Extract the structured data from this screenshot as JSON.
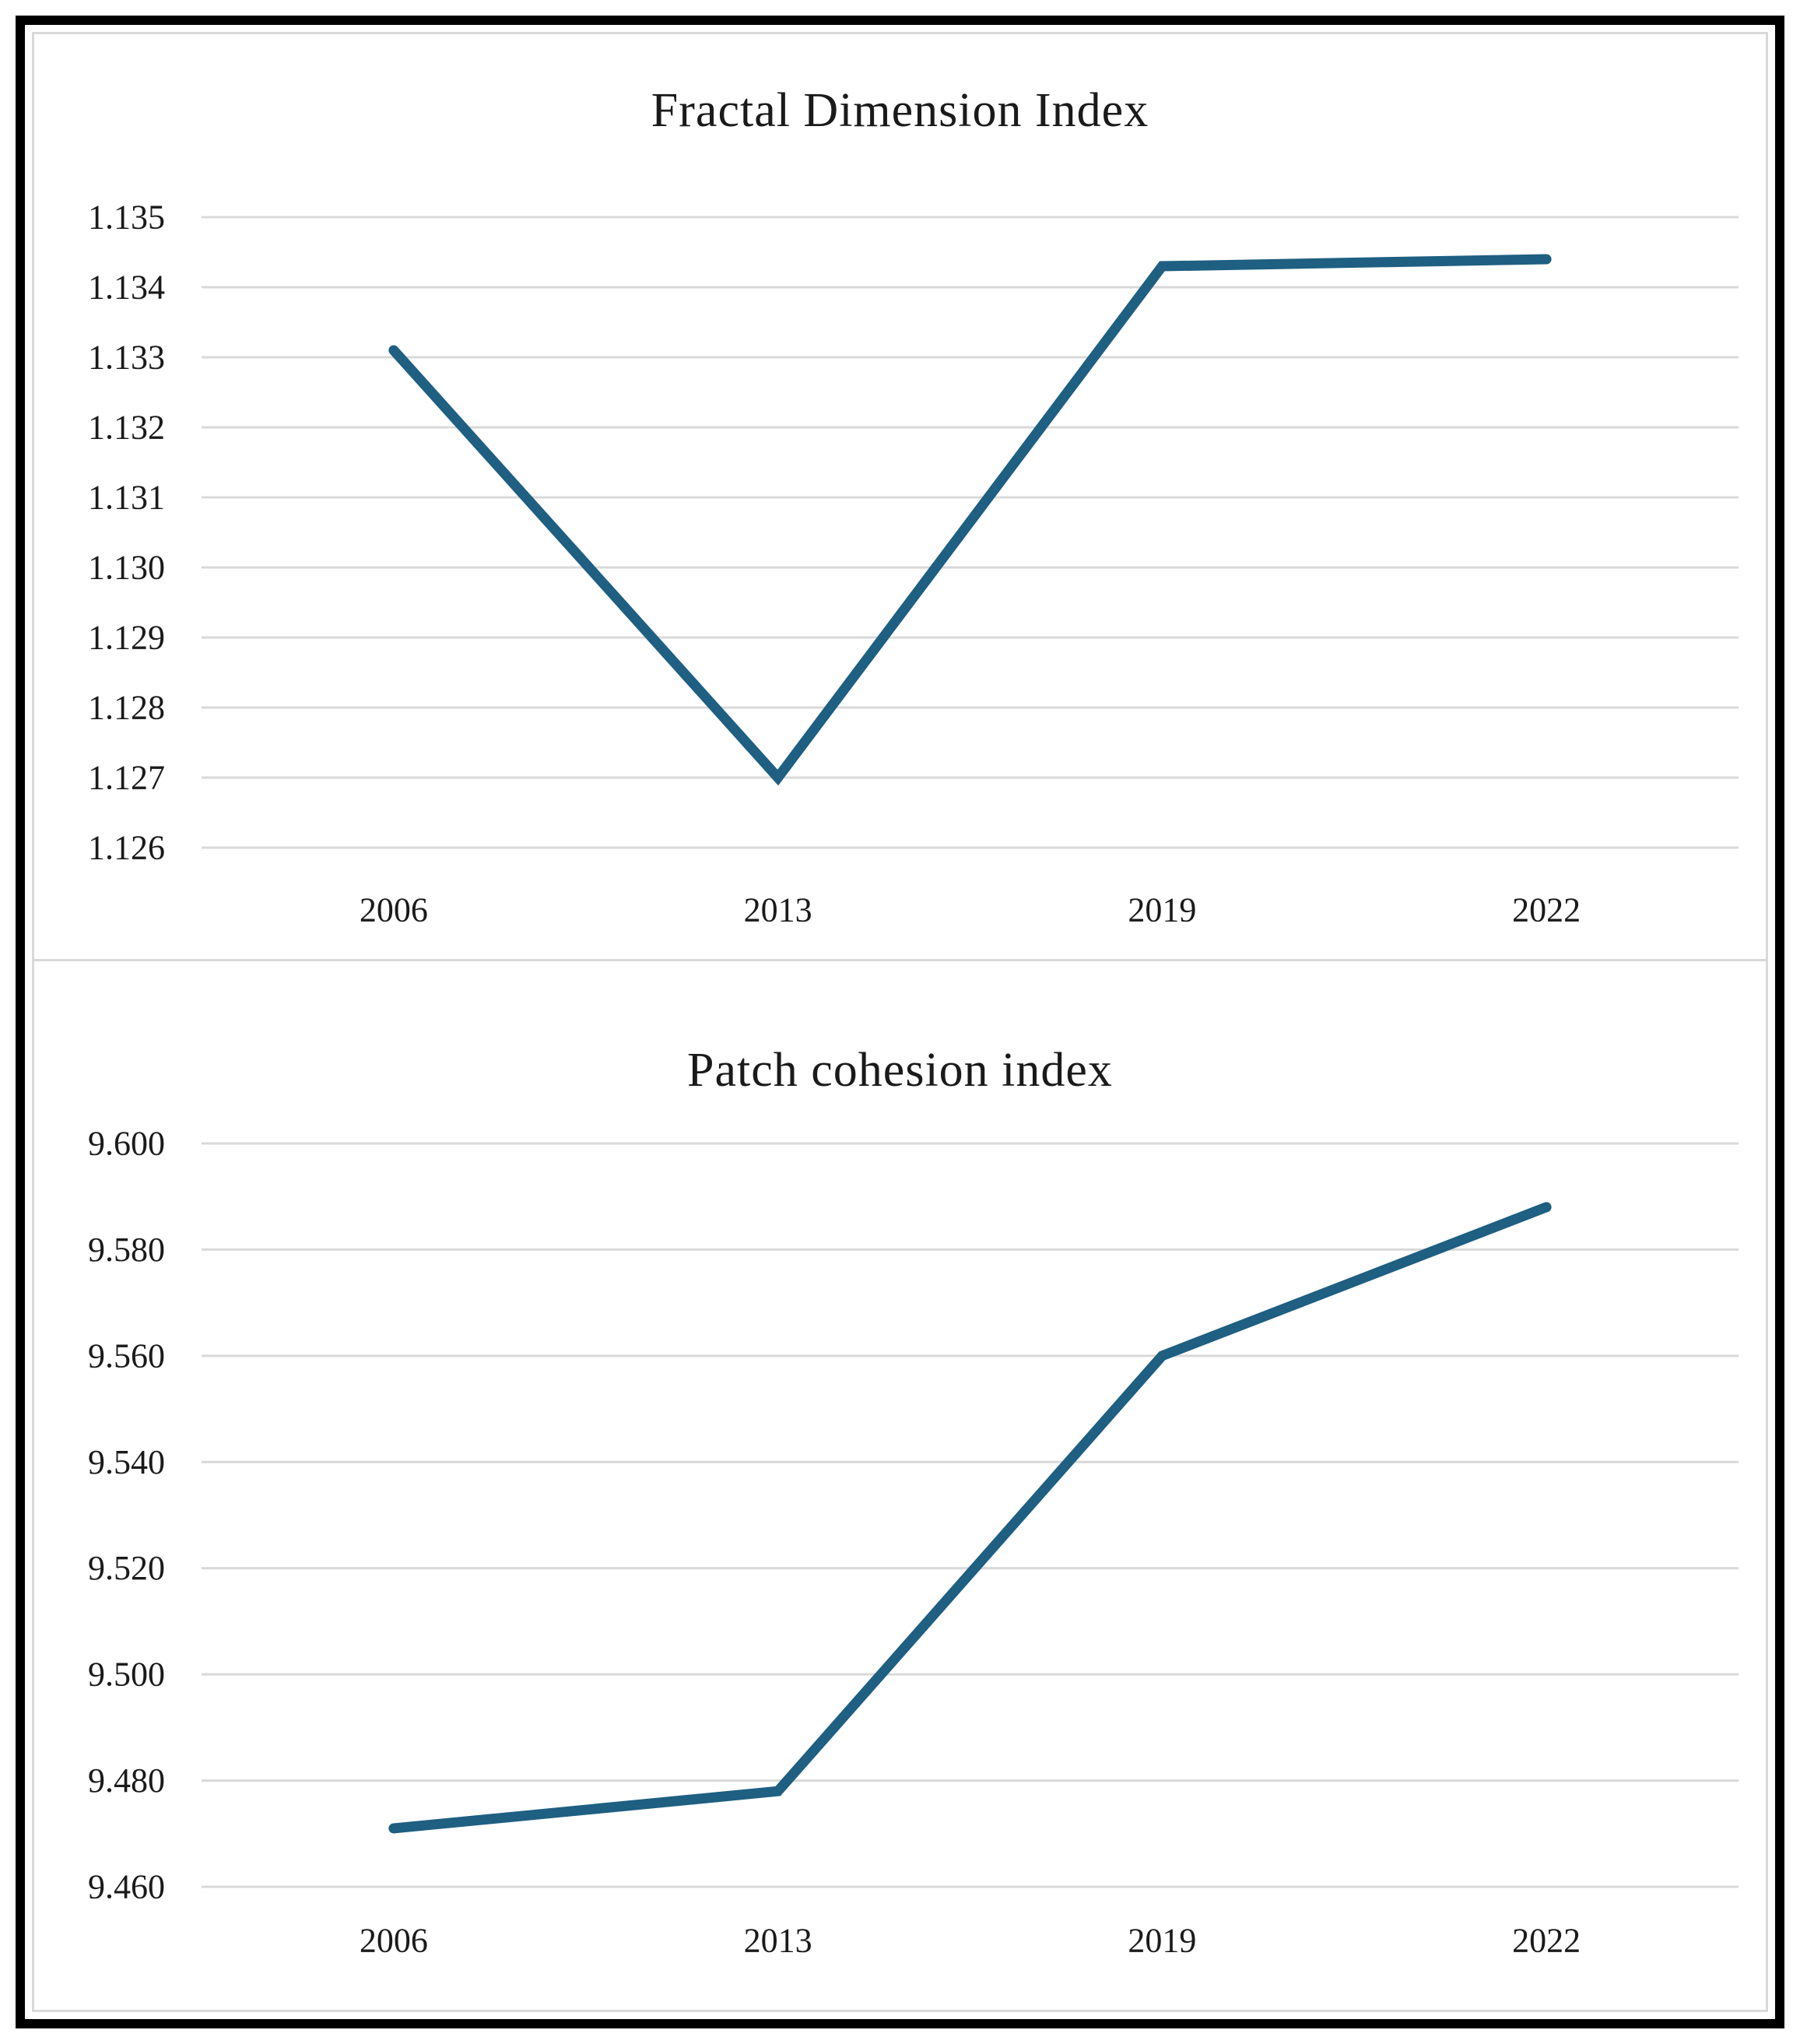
{
  "figure": {
    "background": "#ffffff",
    "frame_color": "#000000",
    "panel_border_color": "#d9d9d9"
  },
  "chart_data": [
    {
      "type": "line",
      "title": "Fractal Dimension Index",
      "categories": [
        "2006",
        "2013",
        "2019",
        "2022"
      ],
      "values": [
        1.1331,
        1.127,
        1.1343,
        1.1344
      ],
      "ylim": [
        1.126,
        1.135
      ],
      "y_ticks": [
        "1.135",
        "1.134",
        "1.133",
        "1.132",
        "1.131",
        "1.130",
        "1.129",
        "1.128",
        "1.127",
        "1.126"
      ],
      "xlabel": "",
      "ylabel": "",
      "grid": true,
      "legend": "none",
      "line_color": "#1e5f82",
      "grid_color": "#d9d9d9",
      "text_color": "#1a1a1a"
    },
    {
      "type": "line",
      "title": "Patch cohesion index",
      "categories": [
        "2006",
        "2013",
        "2019",
        "2022"
      ],
      "values": [
        9.471,
        9.478,
        9.56,
        9.588
      ],
      "ylim": [
        9.46,
        9.6
      ],
      "y_ticks": [
        "9.600",
        "9.580",
        "9.560",
        "9.540",
        "9.520",
        "9.500",
        "9.480",
        "9.460"
      ],
      "xlabel": "",
      "ylabel": "",
      "grid": true,
      "legend": "none",
      "line_color": "#1e5f82",
      "grid_color": "#d9d9d9",
      "text_color": "#1a1a1a"
    }
  ]
}
